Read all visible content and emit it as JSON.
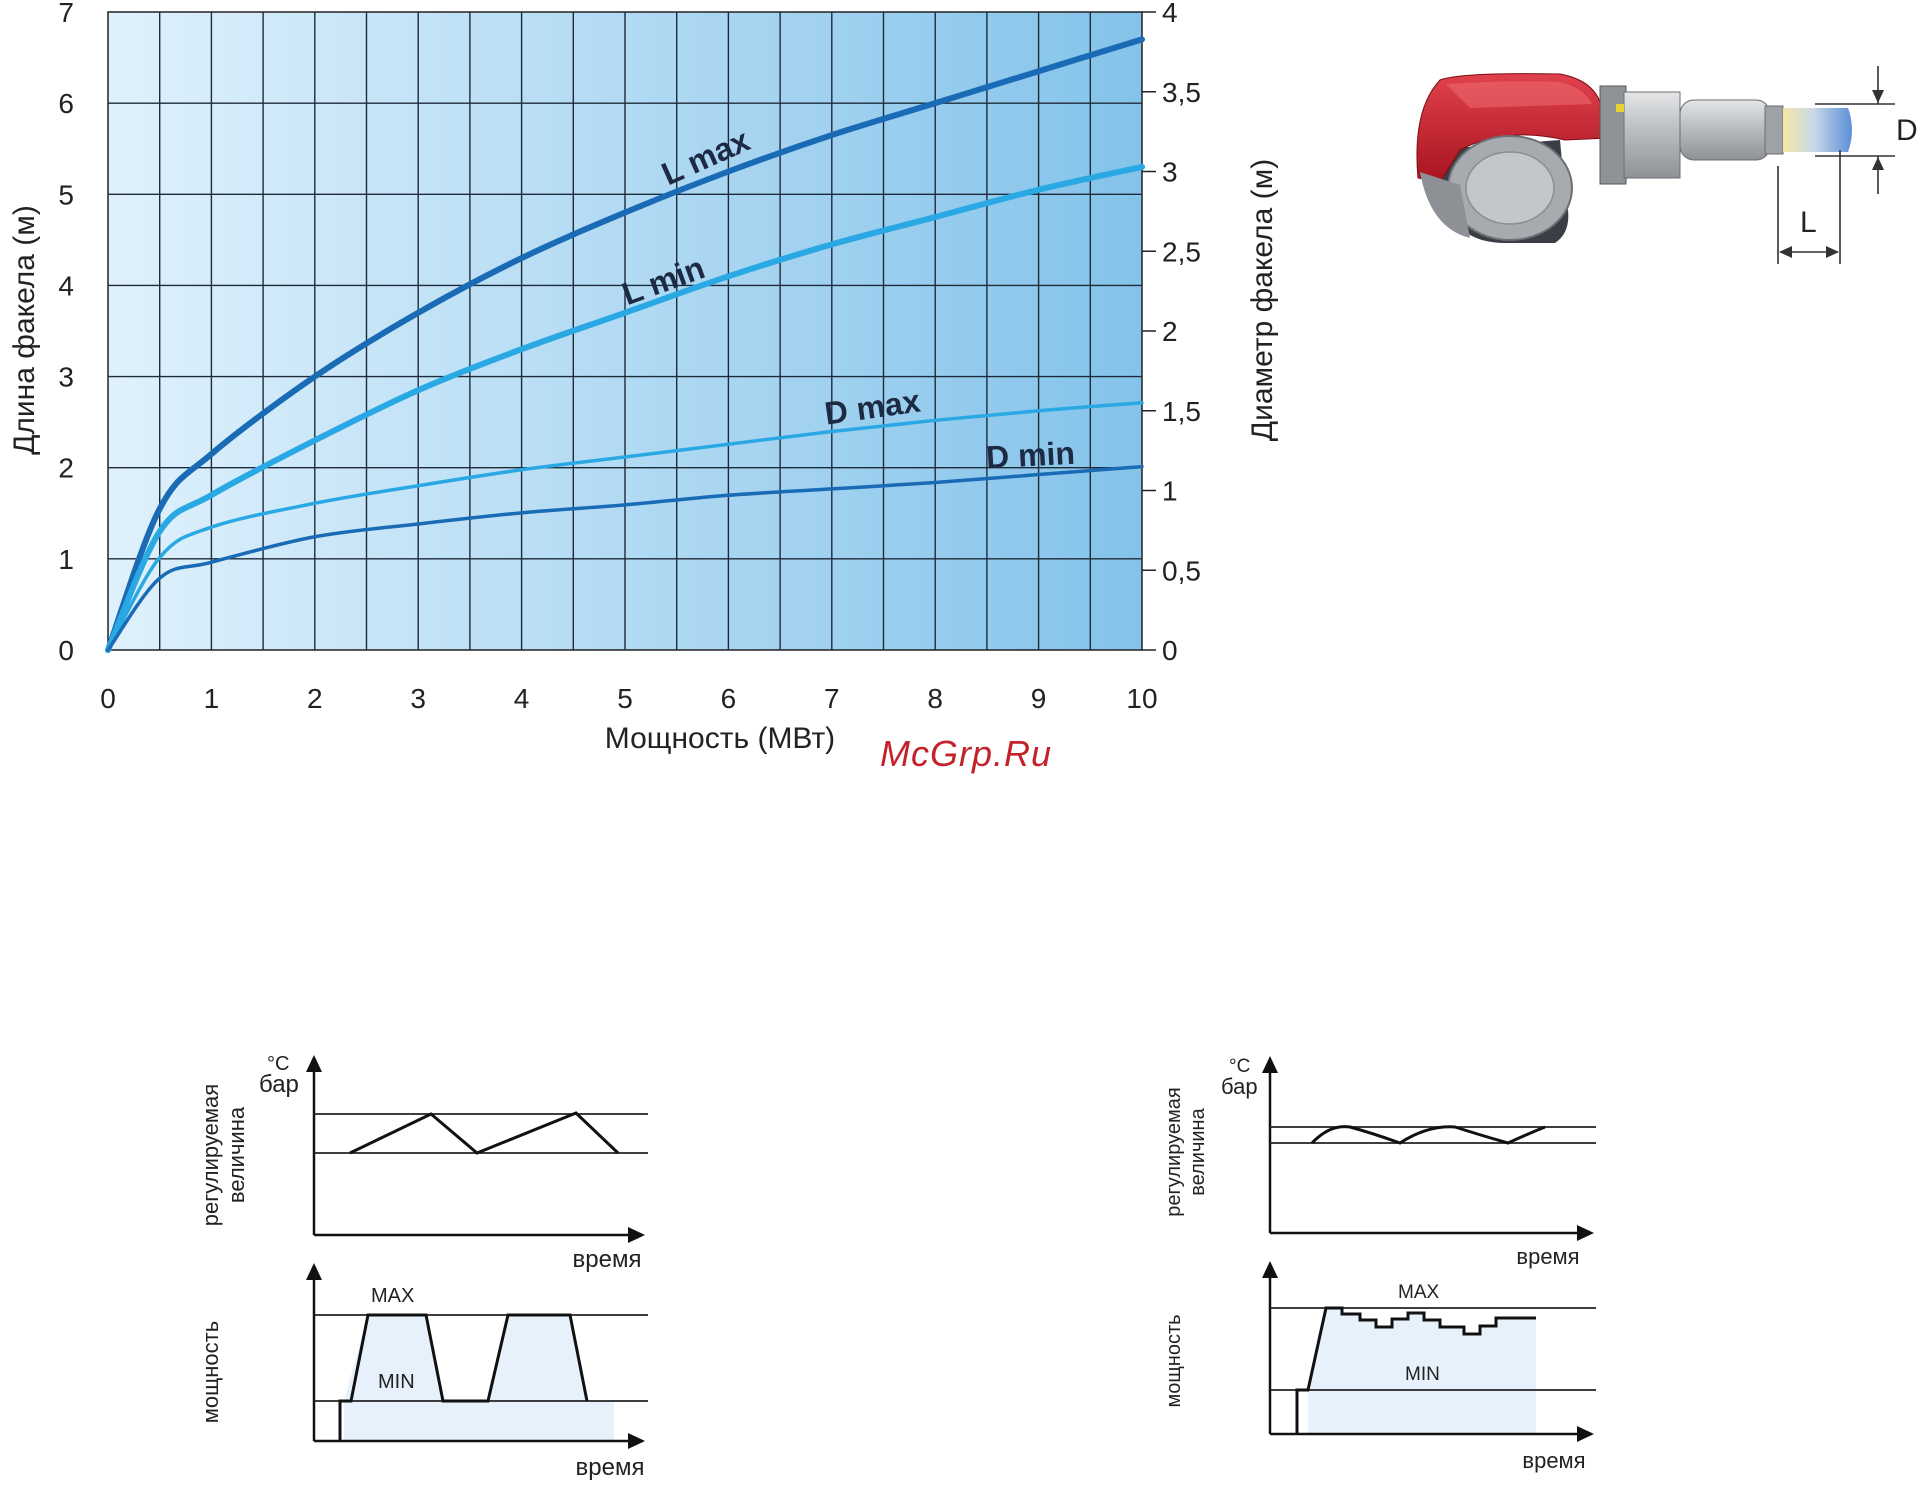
{
  "watermark": "McGrp.Ru",
  "chart_data": {
    "type": "line",
    "title": "",
    "xlabel": "Мощность (МВт)",
    "ylabel_left": "Длина факела (м)",
    "ylabel_right": "Диаметр факела (м)",
    "xlim": [
      0,
      10
    ],
    "ylim_left": [
      0,
      7
    ],
    "ylim_right": [
      0,
      4
    ],
    "x_ticks": [
      "0",
      "1",
      "2",
      "3",
      "4",
      "5",
      "6",
      "7",
      "8",
      "9",
      "10"
    ],
    "y_ticks_left": [
      "0",
      "1",
      "2",
      "3",
      "4",
      "5",
      "6",
      "7"
    ],
    "y_ticks_right": [
      "0",
      "0,5",
      "1",
      "1,5",
      "2",
      "2,5",
      "3",
      "3,5",
      "4"
    ],
    "grid": true,
    "colors": {
      "dark": "#1a6bb5",
      "light": "#2aa8e4"
    },
    "x": [
      0,
      0.5,
      1,
      2,
      3,
      4,
      5,
      6,
      7,
      8,
      9,
      10
    ],
    "series": [
      {
        "name": "L max",
        "axis": "left",
        "color": "#1a6bb5",
        "values": [
          0,
          1.55,
          2.15,
          3.0,
          3.7,
          4.3,
          4.8,
          5.25,
          5.65,
          6.0,
          6.35,
          6.7
        ]
      },
      {
        "name": "L min",
        "axis": "left",
        "color": "#2aa8e4",
        "values": [
          0,
          1.3,
          1.7,
          2.3,
          2.85,
          3.3,
          3.7,
          4.1,
          4.45,
          4.75,
          5.05,
          5.3
        ]
      },
      {
        "name": "D max",
        "axis": "right",
        "color": "#2aa8e4",
        "values": [
          0,
          0.58,
          0.77,
          0.92,
          1.03,
          1.13,
          1.21,
          1.29,
          1.37,
          1.44,
          1.5,
          1.55
        ]
      },
      {
        "name": "D min",
        "axis": "right",
        "color": "#1a6bb5",
        "values": [
          0,
          0.45,
          0.55,
          0.71,
          0.79,
          0.86,
          0.91,
          0.97,
          1.01,
          1.05,
          1.1,
          1.15
        ]
      }
    ]
  },
  "burner": {
    "label_d": "D",
    "label_l": "L",
    "colors": {
      "body": "#c8202e",
      "metal": "#b9bcc0",
      "flame": "#5b8fd6"
    }
  },
  "regulation": [
    {
      "y_unit_1": "°C",
      "y_unit_2": "бар",
      "top_ylabel_1": "регулируемая",
      "top_ylabel_2": "величина",
      "bottom_ylabel": "мощность",
      "xlabel": "время",
      "max_label": "MAX",
      "min_label": "MIN"
    },
    {
      "y_unit_1": "°C",
      "y_unit_2": "бар",
      "top_ylabel_1": "регулируемая",
      "top_ylabel_2": "величина",
      "bottom_ylabel": "мощность",
      "xlabel": "время",
      "max_label": "MAX",
      "min_label": "MIN"
    }
  ]
}
